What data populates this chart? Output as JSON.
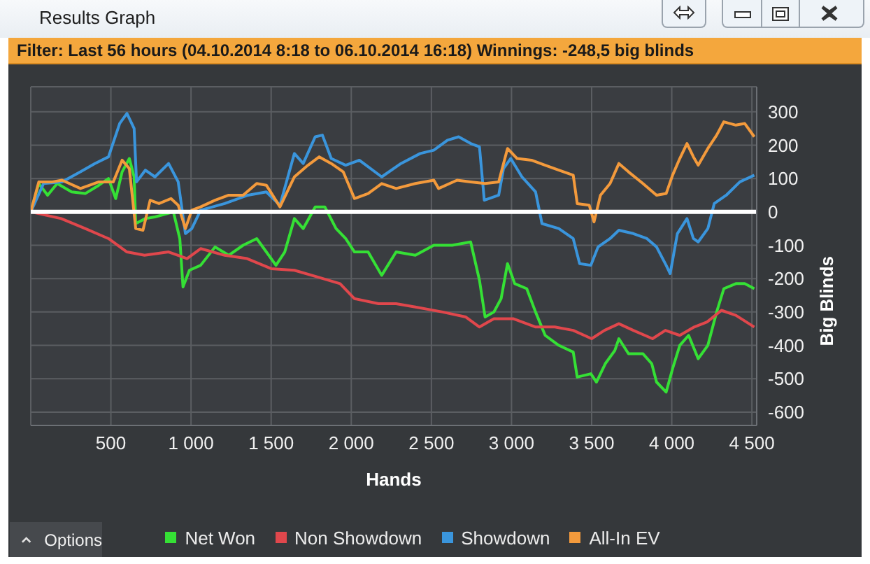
{
  "chart_data": {
    "type": "line",
    "title": "Results Graph",
    "subtitle": "Filter: Last 56 hours (04.10.2014 8:18 to 06.10.2014 16:18) Winnings: -248,5 big blinds",
    "xlabel": "Hands",
    "ylabel": "Big Blinds",
    "annotations": [
      "Options"
    ],
    "xlim": [
      0,
      4530
    ],
    "ylim": [
      -640,
      375
    ],
    "xticks": [
      500,
      {
        "value": 1000,
        "label": "1 000"
      },
      {
        "value": 1500,
        "label": "1 500"
      },
      {
        "value": 2000,
        "label": "2 000"
      },
      {
        "value": 2500,
        "label": "2 500"
      },
      {
        "value": 3000,
        "label": "3 000"
      },
      {
        "value": 3500,
        "label": "3 500"
      },
      {
        "value": 4000,
        "label": "4 000"
      },
      {
        "value": 4500,
        "label": "4 500"
      }
    ],
    "yticks": [
      -600,
      -500,
      -400,
      -300,
      -200,
      -100,
      0,
      100,
      200,
      300
    ],
    "grid": true,
    "legend": "bottom",
    "ref_lines": [
      {
        "axis": "y",
        "value": 0,
        "color": "#ffffff"
      }
    ],
    "series": [
      {
        "name": "Net Won",
        "color": "#35e035",
        "x": [
          0,
          50,
          105,
          165,
          255,
          340,
          425,
          485,
          530,
          570,
          615,
          645,
          655,
          715,
          775,
          890,
          930,
          950,
          990,
          1060,
          1150,
          1235,
          1325,
          1410,
          1470,
          1530,
          1585,
          1645,
          1700,
          1775,
          1835,
          1905,
          1965,
          2020,
          2105,
          2190,
          2280,
          2400,
          2515,
          2630,
          2745,
          2800,
          2835,
          2890,
          2935,
          2975,
          3020,
          3095,
          3150,
          3210,
          3295,
          3385,
          3410,
          3495,
          3530,
          3585,
          3645,
          3670,
          3730,
          3820,
          3875,
          3905,
          3965,
          4005,
          4050,
          4105,
          4165,
          4225,
          4280,
          4325,
          4400,
          4455,
          4515
        ],
        "values": [
          0,
          85,
          50,
          85,
          60,
          55,
          80,
          100,
          40,
          120,
          160,
          105,
          -35,
          -20,
          -15,
          0,
          -80,
          -225,
          -175,
          -160,
          -105,
          -130,
          -100,
          -80,
          -120,
          -160,
          -120,
          -20,
          -50,
          15,
          15,
          -50,
          -80,
          -120,
          -120,
          -190,
          -120,
          -130,
          -100,
          -100,
          -90,
          -205,
          -315,
          -300,
          -260,
          -155,
          -215,
          -230,
          -300,
          -370,
          -400,
          -420,
          -495,
          -485,
          -510,
          -455,
          -415,
          -380,
          -425,
          -425,
          -455,
          -510,
          -540,
          -470,
          -400,
          -370,
          -440,
          -400,
          -300,
          -230,
          -215,
          -215,
          -230
        ]
      },
      {
        "name": "Non Showdown",
        "color": "#e0474c",
        "x": [
          0,
          190,
          340,
          485,
          600,
          710,
          860,
          975,
          1060,
          1210,
          1350,
          1500,
          1645,
          1790,
          1930,
          2020,
          2170,
          2280,
          2400,
          2570,
          2715,
          2800,
          2890,
          3010,
          3150,
          3270,
          3385,
          3500,
          3580,
          3670,
          3760,
          3880,
          3960,
          4050,
          4140,
          4220,
          4310,
          4400,
          4515
        ],
        "values": [
          0,
          -20,
          -50,
          -80,
          -120,
          -130,
          -120,
          -140,
          -110,
          -130,
          -140,
          -170,
          -175,
          -195,
          -215,
          -260,
          -275,
          -275,
          -285,
          -300,
          -315,
          -345,
          -320,
          -320,
          -345,
          -345,
          -355,
          -380,
          -355,
          -335,
          -355,
          -380,
          -355,
          -370,
          -345,
          -330,
          -295,
          -310,
          -345
        ]
      },
      {
        "name": "Showdown",
        "color": "#3a95dc",
        "x": [
          0,
          80,
          195,
          310,
          400,
          485,
          555,
          600,
          645,
          660,
          715,
          775,
          860,
          920,
          965,
          1005,
          1060,
          1210,
          1355,
          1470,
          1555,
          1645,
          1700,
          1775,
          1820,
          1875,
          1965,
          2050,
          2190,
          2310,
          2430,
          2515,
          2600,
          2670,
          2745,
          2800,
          2830,
          2920,
          2950,
          2995,
          3065,
          3150,
          3190,
          3295,
          3385,
          3425,
          3495,
          3540,
          3615,
          3670,
          3760,
          3845,
          3905,
          3965,
          3990,
          4035,
          4095,
          4135,
          4165,
          4225,
          4265,
          4340,
          4425,
          4515
        ],
        "values": [
          0,
          85,
          90,
          120,
          145,
          165,
          265,
          295,
          250,
          90,
          125,
          105,
          145,
          90,
          -65,
          -50,
          5,
          25,
          50,
          60,
          20,
          175,
          145,
          225,
          230,
          160,
          140,
          155,
          105,
          145,
          175,
          185,
          215,
          225,
          205,
          195,
          35,
          50,
          130,
          160,
          105,
          60,
          -35,
          -50,
          -80,
          -155,
          -160,
          -105,
          -80,
          -55,
          -65,
          -80,
          -105,
          -160,
          -185,
          -65,
          -20,
          -80,
          -90,
          -50,
          25,
          50,
          90,
          110
        ]
      },
      {
        "name": "All-In EV",
        "color": "#f39a3c",
        "x": [
          0,
          50,
          135,
          195,
          310,
          425,
          515,
          570,
          615,
          655,
          700,
          745,
          800,
          875,
          920,
          965,
          1005,
          1060,
          1150,
          1235,
          1325,
          1410,
          1470,
          1555,
          1645,
          1730,
          1800,
          1875,
          1950,
          2020,
          2105,
          2190,
          2280,
          2400,
          2515,
          2545,
          2660,
          2745,
          2835,
          2920,
          2975,
          3035,
          3125,
          3210,
          3295,
          3385,
          3410,
          3485,
          3515,
          3555,
          3615,
          3670,
          3730,
          3820,
          3905,
          3965,
          4005,
          4050,
          4095,
          4135,
          4165,
          4225,
          4280,
          4325,
          4400,
          4455,
          4515
        ],
        "values": [
          0,
          90,
          90,
          95,
          70,
          90,
          90,
          155,
          130,
          -50,
          -55,
          35,
          25,
          40,
          20,
          -50,
          5,
          15,
          35,
          50,
          50,
          85,
          80,
          15,
          105,
          140,
          165,
          145,
          120,
          40,
          55,
          85,
          70,
          85,
          95,
          70,
          95,
          90,
          85,
          90,
          190,
          160,
          155,
          140,
          125,
          110,
          25,
          20,
          -30,
          50,
          85,
          145,
          120,
          85,
          50,
          55,
          110,
          160,
          205,
          165,
          140,
          190,
          230,
          270,
          260,
          265,
          225
        ]
      }
    ]
  }
}
